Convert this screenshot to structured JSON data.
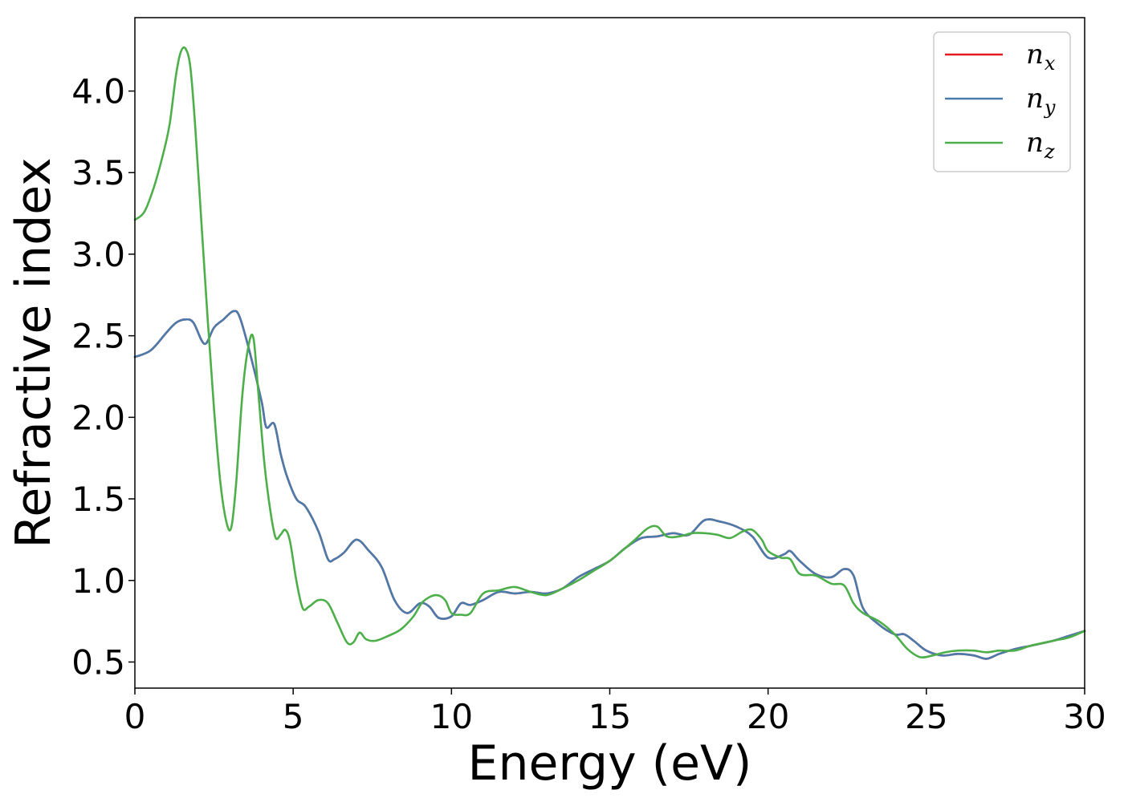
{
  "chart_data": {
    "type": "line",
    "title": "",
    "xlabel": "Energy (eV)",
    "ylabel": "Refractive index",
    "xlim": [
      0,
      30
    ],
    "ylim": [
      0.34,
      4.45
    ],
    "xticks": [
      0,
      5,
      10,
      15,
      20,
      25,
      30
    ],
    "xtick_labels": [
      "0",
      "5",
      "10",
      "15",
      "20",
      "25",
      "30"
    ],
    "yticks": [
      0.5,
      1.0,
      1.5,
      2.0,
      2.5,
      3.0,
      3.5,
      4.0
    ],
    "ytick_labels": [
      "0.5",
      "1.0",
      "1.5",
      "2.0",
      "2.5",
      "3.0",
      "3.5",
      "4.0"
    ],
    "grid": false,
    "legend_position": "top-right",
    "series": [
      {
        "name": "n_x",
        "label_main": "n",
        "label_sub": "x",
        "color": "#e41a1c",
        "x": [
          0,
          0.5,
          1.0,
          1.3,
          1.6,
          1.85,
          2.2,
          2.5,
          2.8,
          3.1,
          3.3,
          3.6,
          4.0,
          4.15,
          4.4,
          4.6,
          4.8,
          5.1,
          5.4,
          5.8,
          6.1,
          6.3,
          6.6,
          7.0,
          7.4,
          7.8,
          8.2,
          8.6,
          9.0,
          9.3,
          9.6,
          10.0,
          10.3,
          10.6,
          11.0,
          11.5,
          12.0,
          12.5,
          13.0,
          13.5,
          14.0,
          14.5,
          15.0,
          15.5,
          16.0,
          16.5,
          17.0,
          17.5,
          18.0,
          18.5,
          19.0,
          19.5,
          20.0,
          20.5,
          20.7,
          21.0,
          21.5,
          22.0,
          22.4,
          22.7,
          23.0,
          23.5,
          24.0,
          24.3,
          24.6,
          25.0,
          25.5,
          26.0,
          26.5,
          26.9,
          27.3,
          27.8,
          28.3,
          29.0,
          29.5,
          30.0
        ],
        "y": [
          2.37,
          2.41,
          2.52,
          2.58,
          2.6,
          2.58,
          2.45,
          2.55,
          2.6,
          2.65,
          2.62,
          2.42,
          2.1,
          1.94,
          1.96,
          1.78,
          1.64,
          1.5,
          1.45,
          1.3,
          1.13,
          1.13,
          1.17,
          1.25,
          1.18,
          1.08,
          0.88,
          0.8,
          0.86,
          0.84,
          0.77,
          0.78,
          0.86,
          0.85,
          0.88,
          0.93,
          0.92,
          0.93,
          0.92,
          0.95,
          1.02,
          1.07,
          1.12,
          1.2,
          1.26,
          1.27,
          1.29,
          1.28,
          1.37,
          1.36,
          1.33,
          1.27,
          1.14,
          1.16,
          1.18,
          1.12,
          1.04,
          1.02,
          1.07,
          1.03,
          0.83,
          0.73,
          0.67,
          0.67,
          0.63,
          0.57,
          0.54,
          0.55,
          0.54,
          0.52,
          0.55,
          0.58,
          0.6,
          0.63,
          0.66,
          0.69
        ]
      },
      {
        "name": "n_y",
        "label_main": "n",
        "label_sub": "y",
        "color": "#4a7bab",
        "x": [
          0,
          0.5,
          1.0,
          1.3,
          1.6,
          1.85,
          2.2,
          2.5,
          2.8,
          3.1,
          3.3,
          3.6,
          4.0,
          4.15,
          4.4,
          4.6,
          4.8,
          5.1,
          5.4,
          5.8,
          6.1,
          6.3,
          6.6,
          7.0,
          7.4,
          7.8,
          8.2,
          8.6,
          9.0,
          9.3,
          9.6,
          10.0,
          10.3,
          10.6,
          11.0,
          11.5,
          12.0,
          12.5,
          13.0,
          13.5,
          14.0,
          14.5,
          15.0,
          15.5,
          16.0,
          16.5,
          17.0,
          17.5,
          18.0,
          18.5,
          19.0,
          19.5,
          20.0,
          20.5,
          20.7,
          21.0,
          21.5,
          22.0,
          22.4,
          22.7,
          23.0,
          23.5,
          24.0,
          24.3,
          24.6,
          25.0,
          25.5,
          26.0,
          26.5,
          26.9,
          27.3,
          27.8,
          28.3,
          29.0,
          29.5,
          30.0
        ],
        "y": [
          2.37,
          2.41,
          2.52,
          2.58,
          2.6,
          2.58,
          2.45,
          2.55,
          2.6,
          2.65,
          2.62,
          2.42,
          2.1,
          1.94,
          1.96,
          1.78,
          1.64,
          1.5,
          1.45,
          1.3,
          1.13,
          1.13,
          1.17,
          1.25,
          1.18,
          1.08,
          0.88,
          0.8,
          0.86,
          0.84,
          0.77,
          0.78,
          0.86,
          0.85,
          0.88,
          0.93,
          0.92,
          0.93,
          0.92,
          0.95,
          1.02,
          1.07,
          1.12,
          1.2,
          1.26,
          1.27,
          1.29,
          1.28,
          1.37,
          1.36,
          1.33,
          1.27,
          1.14,
          1.16,
          1.18,
          1.12,
          1.04,
          1.02,
          1.07,
          1.03,
          0.83,
          0.73,
          0.67,
          0.67,
          0.63,
          0.57,
          0.54,
          0.55,
          0.54,
          0.52,
          0.55,
          0.58,
          0.6,
          0.63,
          0.66,
          0.69
        ]
      },
      {
        "name": "n_z",
        "label_main": "n",
        "label_sub": "z",
        "color": "#4daf4a",
        "x": [
          0,
          0.3,
          0.6,
          0.9,
          1.1,
          1.3,
          1.45,
          1.6,
          1.75,
          1.9,
          2.1,
          2.3,
          2.5,
          2.7,
          2.9,
          3.05,
          3.2,
          3.4,
          3.6,
          3.75,
          3.9,
          4.1,
          4.3,
          4.45,
          4.6,
          4.75,
          4.9,
          5.1,
          5.3,
          5.5,
          5.8,
          6.1,
          6.4,
          6.7,
          6.9,
          7.1,
          7.3,
          7.6,
          8.0,
          8.4,
          8.8,
          9.1,
          9.5,
          9.8,
          10.0,
          10.3,
          10.6,
          11.0,
          11.5,
          12.0,
          12.5,
          13.0,
          13.5,
          14.0,
          14.5,
          15.0,
          15.5,
          15.8,
          16.2,
          16.5,
          16.8,
          17.2,
          17.6,
          18.0,
          18.4,
          18.8,
          19.2,
          19.5,
          19.8,
          20.0,
          20.4,
          20.7,
          21.0,
          21.5,
          22.0,
          22.4,
          22.7,
          23.0,
          23.5,
          24.0,
          24.4,
          24.8,
          25.2,
          25.6,
          26.0,
          26.5,
          26.9,
          27.3,
          27.8,
          28.3,
          29.0,
          29.5,
          30.0
        ],
        "y": [
          3.21,
          3.26,
          3.41,
          3.62,
          3.8,
          4.1,
          4.24,
          4.26,
          4.15,
          3.8,
          3.2,
          2.6,
          2.05,
          1.6,
          1.35,
          1.33,
          1.6,
          2.15,
          2.45,
          2.48,
          2.15,
          1.7,
          1.4,
          1.26,
          1.28,
          1.31,
          1.24,
          1.0,
          0.83,
          0.84,
          0.88,
          0.86,
          0.74,
          0.62,
          0.62,
          0.68,
          0.64,
          0.63,
          0.66,
          0.7,
          0.78,
          0.87,
          0.91,
          0.88,
          0.8,
          0.79,
          0.8,
          0.92,
          0.94,
          0.96,
          0.93,
          0.91,
          0.95,
          1.0,
          1.06,
          1.12,
          1.2,
          1.25,
          1.32,
          1.33,
          1.27,
          1.27,
          1.29,
          1.29,
          1.28,
          1.26,
          1.3,
          1.31,
          1.25,
          1.18,
          1.14,
          1.13,
          1.04,
          1.03,
          0.98,
          0.97,
          0.86,
          0.8,
          0.75,
          0.67,
          0.58,
          0.53,
          0.54,
          0.56,
          0.57,
          0.57,
          0.56,
          0.57,
          0.57,
          0.6,
          0.63,
          0.65,
          0.69
        ]
      }
    ]
  }
}
